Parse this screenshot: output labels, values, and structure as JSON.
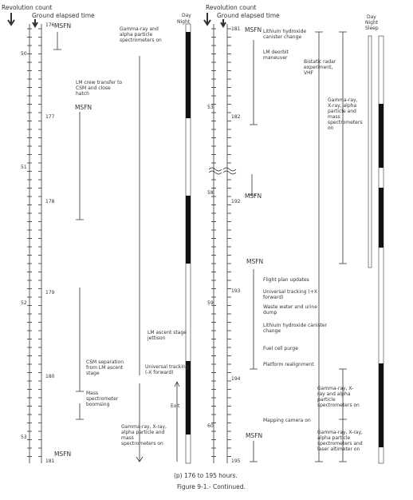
{
  "left": {
    "revolution_count": "Revolution count",
    "ground_elapsed_time": "Ground elapsed time",
    "day": "Day",
    "night": "Night",
    "revolutions": [
      50,
      51,
      52,
      53
    ],
    "hours": [
      176,
      177,
      178,
      179,
      180,
      181
    ],
    "msfn": [
      "MSFN",
      "MSFN",
      "MSFN"
    ],
    "events": [
      "Gamma-ray and alpha particle spectrometers on",
      "LM crew transfer to CSM and close hatch",
      "LM ascent stage jettison",
      "CSM separation from LM ascent stage",
      "Universal tracking (-X forward)",
      "Mass spectrometer boomsing",
      "Exit",
      "Gamma-ray, X-ray, alpha particle and mass spectrometers on"
    ]
  },
  "right": {
    "revolution_count": "Revolution count",
    "ground_elapsed_time": "Ground elapsed time",
    "day": "Day",
    "night": "Night",
    "sleep": "Sleep",
    "revolutions": [
      53,
      58,
      59,
      60
    ],
    "hours": [
      181,
      182,
      192,
      193,
      194,
      195
    ],
    "msfn": [
      "MSFN",
      "MSFN",
      "MSFN",
      "MSFN"
    ],
    "events": [
      "Lithium hydroxide canister change",
      "LM deorbit maneuver",
      "Bistatic radar experiment, VHF",
      "Gamma-ray, X-ray, alpha particle and mass spectrometers on",
      "Flight plan updates",
      "Universal tracking (+X forward)",
      "Waste water and urine dump",
      "Lithium hydroxide canister change",
      "Fuel cell purge",
      "Platform realignment",
      "Gamma-ray, X-ray and alpha particle spectrometers on",
      "Mapping camera on",
      "Gamma-ray, X-ray, alpha particle spectrometers and laser altimeter on"
    ]
  },
  "caption": "(p) 176 to 195 hours.",
  "figure": "Figure 9-1.- Continued."
}
